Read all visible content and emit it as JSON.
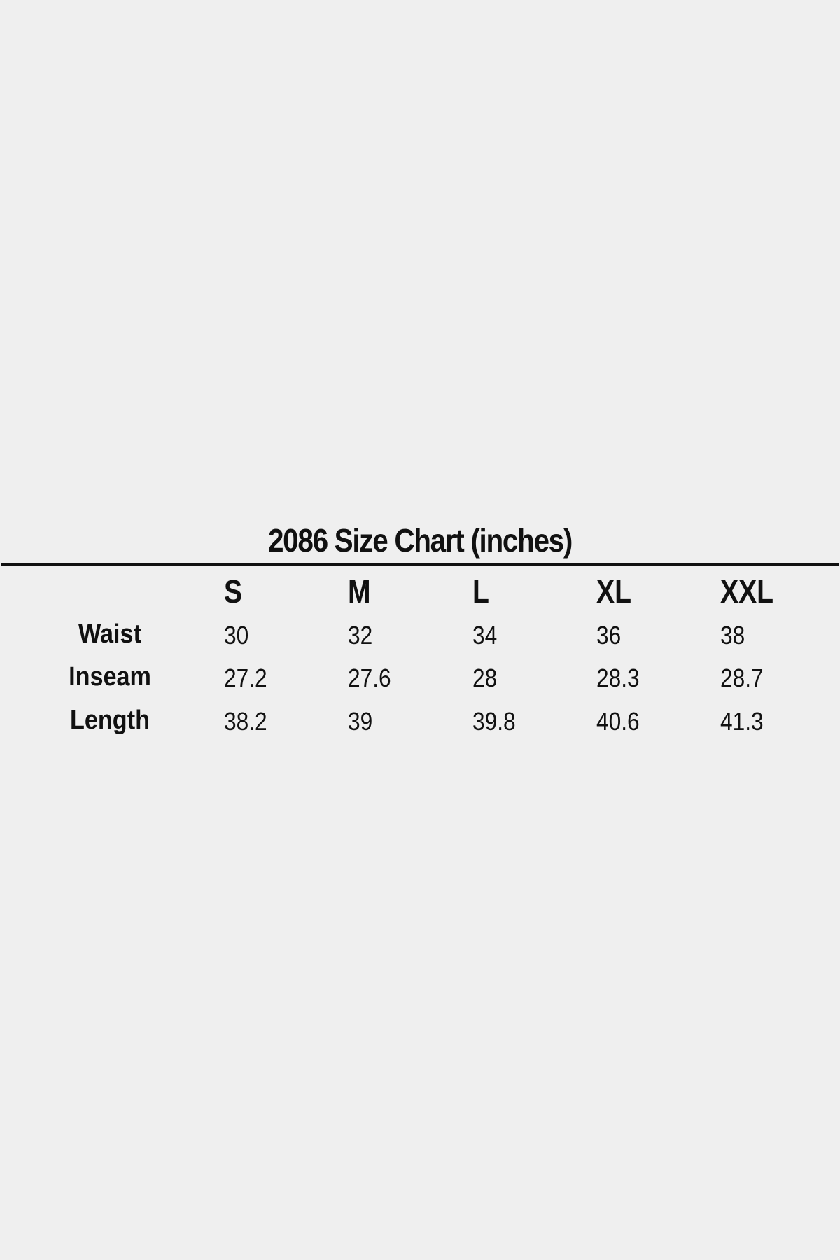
{
  "title": "2086 Size Chart (inches)",
  "sizes": [
    "S",
    "M",
    "L",
    "XL",
    "XXL"
  ],
  "rows": [
    {
      "label": "Waist",
      "values": [
        "30",
        "32",
        "34",
        "36",
        "38"
      ]
    },
    {
      "label": "Inseam",
      "values": [
        "27.2",
        "27.6",
        "28",
        "28.3",
        "28.7"
      ]
    },
    {
      "label": "Length",
      "values": [
        "38.2",
        "39",
        "39.8",
        "40.6",
        "41.3"
      ]
    }
  ]
}
